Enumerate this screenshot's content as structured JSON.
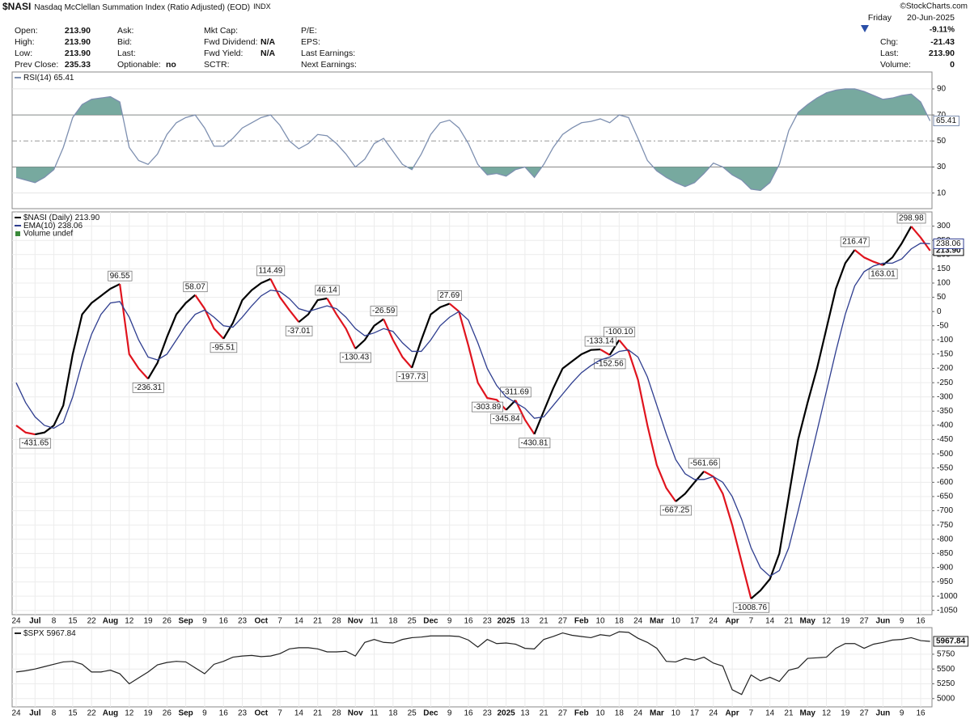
{
  "header": {
    "symbol": "$NASI",
    "name": "Nasdaq McClellan Summation Index (Ratio Adjusted) (EOD)",
    "exchange": "INDX",
    "credit": "©StockCharts.com",
    "weekday": "Friday",
    "date": "20-Jun-2025",
    "change_pct": "-9.11%",
    "fields": [
      [
        {
          "label": "Open:",
          "value": "213.90"
        },
        {
          "label": "High:",
          "value": "213.90"
        },
        {
          "label": "Low:",
          "value": "213.90"
        },
        {
          "label": "Prev Close:",
          "value": "235.33"
        }
      ],
      [
        {
          "label": "Ask:"
        },
        {
          "label": "Bid:"
        },
        {
          "label": "Last:"
        },
        {
          "label": "Optionable:",
          "value": "no"
        }
      ],
      [
        {
          "label": "Mkt Cap:"
        },
        {
          "label": "Fwd Dividend:",
          "value": "N/A"
        },
        {
          "label": "Fwd Yield:",
          "value": "N/A"
        },
        {
          "label": "SCTR:"
        }
      ],
      [
        {
          "label": "P/E:"
        },
        {
          "label": "EPS:"
        },
        {
          "label": "Last Earnings:"
        },
        {
          "label": "Next Earnings:"
        }
      ]
    ],
    "summary": [
      {
        "label": "Chg:",
        "value": "-21.43"
      },
      {
        "label": "Last:",
        "value": "213.90"
      },
      {
        "label": "Volume:",
        "value": "0"
      }
    ]
  },
  "chart_data": [
    {
      "type": "line",
      "ylim": [
        -2,
        103
      ],
      "yticks": [
        10,
        30,
        50,
        70,
        90
      ],
      "bands": [
        30,
        70
      ],
      "midline": 50,
      "fill_color": "#5f9a8e",
      "series": [
        {
          "name": "RSI(14)",
          "color": "#7d8fb0",
          "values": [
            22,
            20,
            18,
            22,
            28,
            45,
            68,
            78,
            82,
            83,
            84,
            80,
            45,
            35,
            32,
            40,
            55,
            64,
            68,
            70,
            60,
            46,
            46,
            52,
            60,
            64,
            68,
            70,
            62,
            50,
            44,
            48,
            55,
            54,
            48,
            40,
            30,
            36,
            48,
            52,
            42,
            32,
            28,
            40,
            55,
            64,
            66,
            60,
            48,
            32,
            24,
            25,
            23,
            28,
            30,
            22,
            32,
            45,
            55,
            60,
            64,
            65,
            67,
            64,
            70,
            68,
            52,
            35,
            27,
            22,
            18,
            15,
            18,
            25,
            33,
            30,
            24,
            20,
            13,
            12,
            18,
            32,
            58,
            72,
            78,
            83,
            87,
            89,
            90,
            90,
            88,
            85,
            82,
            83,
            85,
            86,
            80,
            65.41
          ]
        }
      ]
    },
    {
      "type": "line",
      "ylim": [
        -1065,
        350
      ],
      "yticks": [
        300,
        250,
        200,
        150,
        100,
        50,
        0,
        -50,
        -100,
        -150,
        -200,
        -250,
        -300,
        -350,
        -400,
        -450,
        -500,
        -550,
        -600,
        -650,
        -700,
        -750,
        -800,
        -850,
        -900,
        -950,
        -1000,
        -1050
      ],
      "grid": true,
      "legend_extra": "Volume undef",
      "categories": [
        "24",
        null,
        "Jul",
        null,
        "8",
        null,
        "15",
        null,
        "22",
        null,
        "Aug",
        null,
        "12",
        null,
        "19",
        null,
        "26",
        null,
        "Sep",
        null,
        "9",
        null,
        "16",
        null,
        "23",
        null,
        "Oct",
        null,
        "7",
        null,
        "14",
        null,
        "21",
        null,
        "28",
        null,
        "Nov",
        null,
        "11",
        null,
        "18",
        null,
        "25",
        null,
        "Dec",
        null,
        "9",
        null,
        "16",
        null,
        "23",
        null,
        "2025",
        null,
        "13",
        null,
        "21",
        null,
        "27",
        null,
        "Feb",
        null,
        "10",
        null,
        "18",
        null,
        "24",
        null,
        "Mar",
        null,
        "10",
        null,
        "17",
        null,
        "24",
        null,
        "Apr",
        null,
        "7",
        null,
        "14",
        null,
        "21",
        null,
        "May",
        null,
        "12",
        null,
        "19",
        null,
        "27",
        null,
        "Jun",
        null,
        "9",
        null,
        "16",
        null
      ],
      "series": [
        {
          "name": "$NASI (Daily)",
          "up_color": "#000000",
          "down_color": "#e0141e",
          "last_label": "213.90",
          "values": [
            -400,
            -425,
            -431.65,
            -425,
            -400,
            -330,
            -150,
            -10,
            30,
            55,
            80,
            96.55,
            -150,
            -200,
            -236.31,
            -180,
            -90,
            -10,
            30,
            58.07,
            10,
            -60,
            -95.51,
            -40,
            40,
            75,
            100,
            114.49,
            50,
            5,
            -37.01,
            -10,
            40,
            46.14,
            -10,
            -60,
            -130.43,
            -100,
            -50,
            -26.59,
            -100,
            -160,
            -197.73,
            -100,
            -10,
            15,
            27.69,
            0,
            -120,
            -250,
            -303.89,
            -310,
            -345.84,
            -311.69,
            -380,
            -430.81,
            -350,
            -270,
            -200,
            -175,
            -150,
            -135,
            -133.14,
            -152.56,
            -100.1,
            -140,
            -240,
            -400,
            -540,
            -620,
            -667.25,
            -640,
            -600,
            -561.66,
            -580,
            -640,
            -750,
            -880,
            -1008.76,
            -980,
            -940,
            -850,
            -650,
            -450,
            -320,
            -200,
            -60,
            80,
            170,
            216.47,
            190,
            175,
            163.01,
            190,
            240,
            298.98,
            260,
            213.9
          ],
          "value_labels": [
            null,
            null,
            "-431.65",
            null,
            null,
            null,
            null,
            null,
            null,
            null,
            null,
            "96.55",
            null,
            null,
            "-236.31",
            null,
            null,
            null,
            null,
            "58.07",
            null,
            null,
            "-95.51",
            null,
            null,
            null,
            null,
            "114.49",
            null,
            null,
            "-37.01",
            null,
            null,
            "46.14",
            null,
            null,
            "-130.43",
            null,
            null,
            "-26.59",
            null,
            null,
            "-197.73",
            null,
            null,
            null,
            "27.69",
            null,
            null,
            null,
            "-303.89",
            null,
            "-345.84",
            "-311.69",
            null,
            "-430.81",
            null,
            null,
            null,
            null,
            null,
            null,
            "-133.14",
            "-152.56",
            "-100.10",
            null,
            null,
            null,
            null,
            null,
            "-667.25",
            null,
            null,
            "-561.66",
            null,
            null,
            null,
            null,
            "-1008.76",
            null,
            null,
            null,
            null,
            null,
            null,
            null,
            null,
            null,
            null,
            "216.47",
            null,
            null,
            "163.01",
            null,
            null,
            "298.98",
            null,
            null
          ]
        },
        {
          "name": "EMA(10)",
          "color": "#2e3d8f",
          "values": [
            -250,
            -320,
            -370,
            -400,
            -410,
            -390,
            -300,
            -180,
            -80,
            -10,
            30,
            35,
            -20,
            -100,
            -160,
            -170,
            -150,
            -100,
            -50,
            -10,
            5,
            -20,
            -50,
            -55,
            -20,
            20,
            55,
            75,
            70,
            45,
            10,
            0,
            10,
            20,
            10,
            -20,
            -60,
            -85,
            -75,
            -60,
            -70,
            -110,
            -140,
            -140,
            -100,
            -50,
            -20,
            0,
            -30,
            -110,
            -200,
            -260,
            -300,
            -320,
            -340,
            -375,
            -370,
            -330,
            -290,
            -250,
            -215,
            -190,
            -170,
            -160,
            -140,
            -135,
            -160,
            -230,
            -330,
            -430,
            -520,
            -570,
            -590,
            -590,
            -580,
            -600,
            -650,
            -730,
            -830,
            -900,
            -930,
            -910,
            -830,
            -700,
            -560,
            -420,
            -280,
            -140,
            -10,
            90,
            140,
            160,
            170,
            170,
            185,
            220,
            240,
            238.06
          ]
        }
      ]
    },
    {
      "type": "line",
      "ylim": [
        4860,
        6200
      ],
      "yticks": [
        5750,
        5500,
        5250,
        5000
      ],
      "grid": true,
      "categories": [
        "24",
        null,
        "Jul",
        null,
        "8",
        null,
        "15",
        null,
        "22",
        null,
        "Aug",
        null,
        "12",
        null,
        "19",
        null,
        "26",
        null,
        "Sep",
        null,
        "9",
        null,
        "16",
        null,
        "23",
        null,
        "Oct",
        null,
        "7",
        null,
        "14",
        null,
        "21",
        null,
        "28",
        null,
        "Nov",
        null,
        "11",
        null,
        "18",
        null,
        "25",
        null,
        "Dec",
        null,
        "9",
        null,
        "16",
        null,
        "23",
        null,
        "2025",
        null,
        "13",
        null,
        "21",
        null,
        "27",
        null,
        "Feb",
        null,
        "10",
        null,
        "18",
        null,
        "24",
        null,
        "Mar",
        null,
        "10",
        null,
        "17",
        null,
        "24",
        null,
        "Apr",
        null,
        "7",
        null,
        "14",
        null,
        "21",
        null,
        "May",
        null,
        "12",
        null,
        "19",
        null,
        "27",
        null,
        "Jun",
        null,
        "9",
        null,
        "16",
        null
      ],
      "series": [
        {
          "name": "$SPX",
          "color": "#222222",
          "values": [
            5450,
            5470,
            5500,
            5540,
            5580,
            5620,
            5630,
            5580,
            5450,
            5450,
            5480,
            5420,
            5250,
            5350,
            5450,
            5570,
            5610,
            5630,
            5620,
            5520,
            5420,
            5580,
            5630,
            5700,
            5720,
            5730,
            5710,
            5720,
            5760,
            5840,
            5860,
            5860,
            5840,
            5790,
            5790,
            5800,
            5720,
            5950,
            6000,
            5950,
            5940,
            6000,
            6030,
            6040,
            6060,
            6060,
            6060,
            6050,
            5990,
            5870,
            6000,
            5930,
            5940,
            5920,
            5850,
            5840,
            6000,
            6050,
            6110,
            6070,
            6050,
            6030,
            6080,
            6060,
            6130,
            6120,
            6020,
            5950,
            5850,
            5630,
            5620,
            5680,
            5650,
            5700,
            5600,
            5550,
            5150,
            5070,
            5400,
            5300,
            5360,
            5290,
            5480,
            5520,
            5680,
            5690,
            5700,
            5850,
            5930,
            5930,
            5850,
            5920,
            5950,
            5990,
            6000,
            6030,
            5980,
            5967.84
          ]
        }
      ]
    }
  ]
}
